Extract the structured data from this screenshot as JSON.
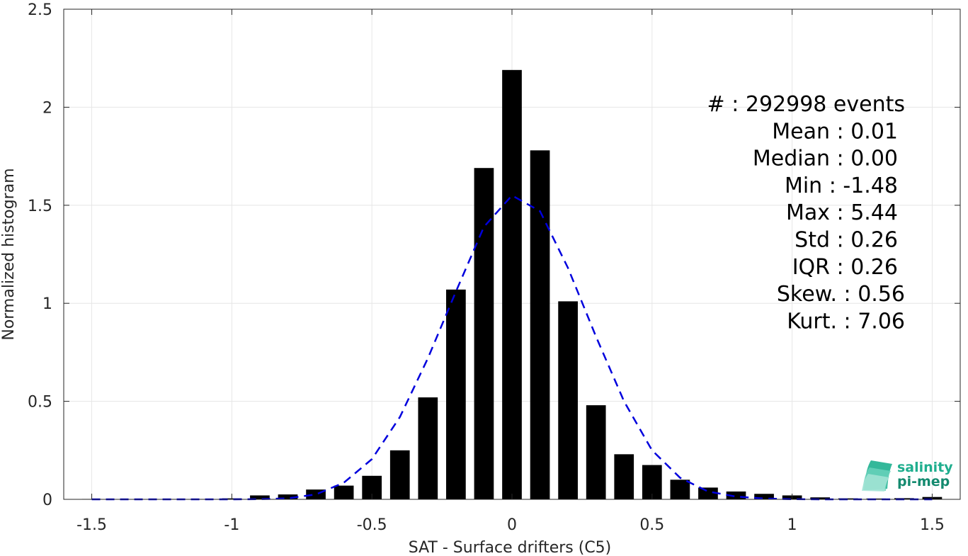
{
  "chart_data": {
    "type": "bar",
    "title": "",
    "xlabel": "SAT - Surface drifters (C5)",
    "ylabel": "Normalized histogram",
    "xlim": [
      -1.6,
      1.6
    ],
    "ylim": [
      0,
      2.5
    ],
    "grid": true,
    "x_ticks": [
      -1.5,
      -1,
      -0.5,
      0,
      0.5,
      1,
      1.5
    ],
    "x_tick_labels": [
      "-1.5",
      "-1",
      "-0.5",
      "0",
      "0.5",
      "1",
      "1.5"
    ],
    "y_ticks": [
      0,
      0.5,
      1,
      1.5,
      2,
      2.5
    ],
    "y_tick_labels": [
      "0",
      "0.5",
      "1",
      "1.5",
      "2",
      "2.5"
    ],
    "bin_width": 0.1,
    "bar_color": "#000000",
    "bars": {
      "x": [
        -1.5,
        -1.4,
        -1.3,
        -1.2,
        -1.1,
        -1.0,
        -0.9,
        -0.8,
        -0.7,
        -0.6,
        -0.5,
        -0.4,
        -0.3,
        -0.2,
        -0.1,
        0.0,
        0.1,
        0.2,
        0.3,
        0.4,
        0.5,
        0.6,
        0.7,
        0.8,
        0.9,
        1.0,
        1.1,
        1.2,
        1.3,
        1.4,
        1.5
      ],
      "values": [
        0.002,
        0.001,
        0.001,
        0.002,
        0.002,
        0.005,
        0.02,
        0.025,
        0.05,
        0.07,
        0.12,
        0.25,
        0.52,
        1.07,
        1.69,
        2.19,
        1.78,
        1.01,
        0.48,
        0.23,
        0.175,
        0.1,
        0.06,
        0.04,
        0.028,
        0.02,
        0.01,
        0.005,
        0.004,
        0.006,
        0.012
      ]
    },
    "fit_line": {
      "style": "dashed",
      "color": "#0000dd",
      "x": [
        -1.5,
        -1.4,
        -1.3,
        -1.2,
        -1.1,
        -1.0,
        -0.9,
        -0.8,
        -0.7,
        -0.6,
        -0.5,
        -0.4,
        -0.3,
        -0.2,
        -0.1,
        0.0,
        0.1,
        0.2,
        0.3,
        0.4,
        0.5,
        0.6,
        0.7,
        0.8,
        0.9,
        1.0,
        1.1,
        1.2,
        1.3,
        1.4,
        1.5
      ],
      "y": [
        0,
        0,
        0,
        0,
        0,
        0,
        0.001,
        0.005,
        0.025,
        0.085,
        0.205,
        0.42,
        0.72,
        1.06,
        1.39,
        1.55,
        1.47,
        1.18,
        0.83,
        0.5,
        0.25,
        0.11,
        0.04,
        0.014,
        0.004,
        0.001,
        0,
        0,
        0,
        0,
        0
      ]
    },
    "stats": [
      {
        "label": "#",
        "sep": " : ",
        "value": "292998 events"
      },
      {
        "label": "Mean",
        "sep": " : ",
        "value": "0.01"
      },
      {
        "label": "Median",
        "sep": " : ",
        "value": "0.00"
      },
      {
        "label": "Min",
        "sep": " : ",
        "value": "-1.48"
      },
      {
        "label": "Max",
        "sep": " : ",
        "value": "5.44"
      },
      {
        "label": "Std",
        "sep": " : ",
        "value": "0.26"
      },
      {
        "label": "IQR",
        "sep": " : ",
        "value": "0.26"
      },
      {
        "label": "Skew.",
        "sep": " : ",
        "value": "0.56"
      },
      {
        "label": "Kurt.",
        "sep": " : ",
        "value": "7.06"
      }
    ]
  },
  "logo": {
    "line1": "salinity",
    "line2": "pi-mep",
    "color1": "#1fae8e",
    "color2": "#148a6f"
  }
}
